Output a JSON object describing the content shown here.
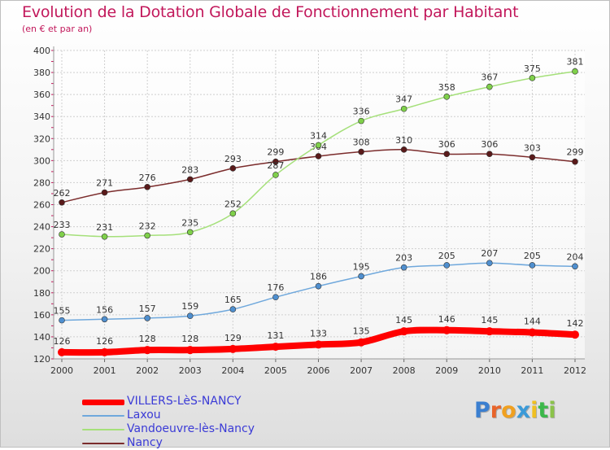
{
  "title": "Evolution de la Dotation Globale de Fonctionnement par Habitant",
  "subtitle": "(en € et par an)",
  "brand": {
    "letters": [
      "P",
      "r",
      "o",
      "x",
      "i",
      "t",
      "i"
    ],
    "colors": [
      "#3b7fd0",
      "#e8642a",
      "#f0a020",
      "#3b9ad8",
      "#f0c020",
      "#3bb84a",
      "#8bc34a"
    ]
  },
  "chart_data": {
    "type": "line",
    "title": "Evolution de la Dotation Globale de Fonctionnement par Habitant",
    "subtitle": "(en € et par an)",
    "x": [
      2000,
      2001,
      2002,
      2003,
      2004,
      2005,
      2006,
      2007,
      2008,
      2009,
      2010,
      2011,
      2012
    ],
    "ylim": [
      120,
      400
    ],
    "yticks": [
      120,
      140,
      160,
      180,
      200,
      220,
      240,
      260,
      280,
      300,
      320,
      340,
      360,
      380,
      400
    ],
    "grid": true,
    "legend_position": "bottom-left",
    "series": [
      {
        "name": "VILLERS-LèS-NANCY",
        "color": "#ff0000",
        "values": [
          126,
          126,
          128,
          128,
          129,
          131,
          133,
          135,
          145,
          146,
          145,
          144,
          142
        ]
      },
      {
        "name": "Laxou",
        "color": "#6fa8dc",
        "values": [
          155,
          156,
          157,
          159,
          165,
          176,
          186,
          195,
          203,
          205,
          207,
          205,
          204
        ]
      },
      {
        "name": "Vandoeuvre-lès-Nancy",
        "color": "#a5e07a",
        "values": [
          233,
          231,
          232,
          235,
          252,
          287,
          314,
          336,
          347,
          358,
          367,
          375,
          381
        ]
      },
      {
        "name": "Nancy",
        "color": "#7b2c2c",
        "values": [
          262,
          271,
          276,
          283,
          293,
          299,
          304,
          308,
          310,
          306,
          306,
          303,
          299
        ]
      }
    ]
  }
}
